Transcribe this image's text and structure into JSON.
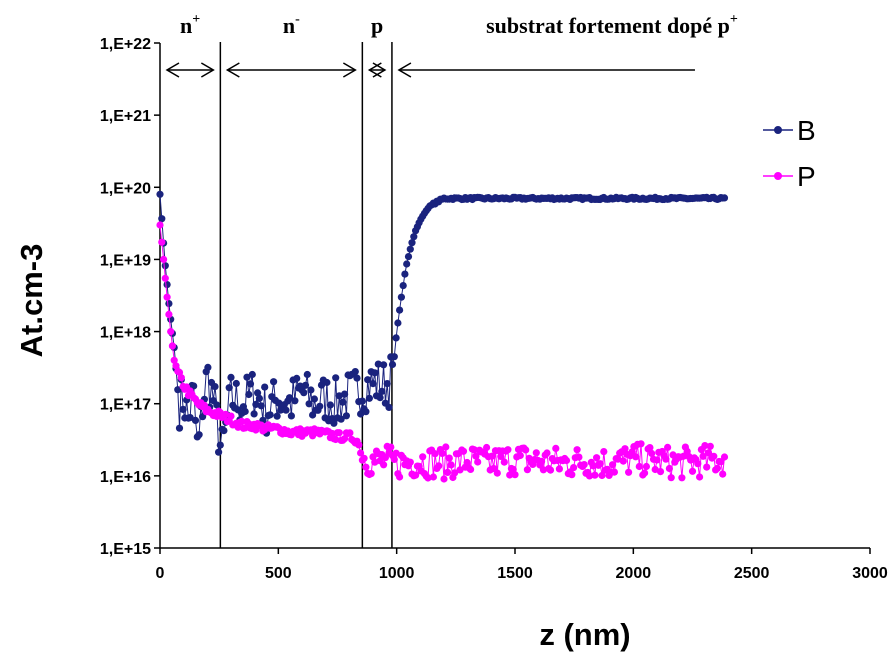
{
  "chart_data": {
    "type": "scatter",
    "title": "",
    "xlabel": "z (nm)",
    "ylabel": "At.cm-3",
    "xlim": [
      0,
      3000
    ],
    "ylim_exponent": [
      15,
      22
    ],
    "y_scale": "log",
    "x_ticks": [
      "0",
      "500",
      "1000",
      "1500",
      "2000",
      "2500",
      "3000"
    ],
    "y_ticks": [
      "1,E+15",
      "1,E+16",
      "1,E+17",
      "1,E+18",
      "1,E+19",
      "1,E+20",
      "1,E+21",
      "1,E+22"
    ],
    "legend_position": "top-right",
    "grid": false,
    "regions": [
      {
        "label": "n",
        "sup": "+",
        "x_from": 0,
        "x_to": 255
      },
      {
        "label": "n",
        "sup": "-",
        "x_from": 255,
        "x_to": 855
      },
      {
        "label": "p",
        "sup": "",
        "x_from": 855,
        "x_to": 980
      },
      {
        "label": "substrat fortement dopé  p",
        "sup": "+",
        "x_from": 980,
        "x_to": 2290
      }
    ],
    "boundaries": [
      255,
      855,
      980
    ],
    "series": [
      {
        "name": "B",
        "color": "#1a237e",
        "x": [
          0,
          20,
          40,
          60,
          80,
          100,
          120,
          140,
          160,
          180,
          200,
          230,
          260,
          300,
          350,
          400,
          450,
          500,
          550,
          600,
          650,
          700,
          750,
          800,
          850,
          880,
          910,
          940,
          970,
          985,
          1000,
          1020,
          1040,
          1060,
          1080,
          1100,
          1120,
          1140,
          1160,
          1180,
          1200,
          1250,
          1300,
          1400,
          1500,
          1600,
          1700,
          1800,
          1900,
          2000,
          2100,
          2200,
          2300,
          2385
        ],
        "y": [
          8e+19,
          1e+19,
          2e+18,
          6e+17,
          1e+17,
          1.2e+17,
          6e+16,
          1.5e+17,
          2e+16,
          1e+17,
          2.5e+17,
          1e+17,
          2e+16,
          1.2e+17,
          1e+17,
          1.5e+17,
          8e+16,
          1.2e+17,
          1e+17,
          1.5e+17,
          1e+17,
          1.2e+17,
          1e+17,
          1.3e+17,
          1.6e+17,
          1.8e+17,
          2e+17,
          1.8e+17,
          2e+17,
          3e+17,
          1e+18,
          3e+18,
          8e+18,
          1.5e+19,
          2.5e+19,
          3.5e+19,
          4.5e+19,
          5.5e+19,
          6e+19,
          6.5e+19,
          7e+19,
          7e+19,
          7e+19,
          7e+19,
          7e+19,
          7e+19,
          7e+19,
          7e+19,
          7e+19,
          7e+19,
          7e+19,
          7e+19,
          7e+19,
          7e+19
        ]
      },
      {
        "name": "P",
        "color": "#ff00ff",
        "x": [
          0,
          15,
          30,
          45,
          60,
          80,
          100,
          130,
          160,
          200,
          250,
          300,
          350,
          400,
          450,
          500,
          550,
          600,
          650,
          700,
          750,
          800,
          830,
          860,
          900,
          950,
          1000,
          1100,
          1200,
          1300,
          1400,
          1500,
          1600,
          1700,
          1800,
          1900,
          2000,
          2100,
          2200,
          2300,
          2385
        ],
        "y": [
          3e+19,
          1e+19,
          3e+18,
          1e+18,
          4e+17,
          2.5e+17,
          1.8e+17,
          1.3e+17,
          1e+17,
          8e+16,
          7e+16,
          6e+16,
          5e+16,
          5e+16,
          4.5e+16,
          4.5e+16,
          4e+16,
          4e+16,
          4e+16,
          3.8e+16,
          3.5e+16,
          3.5e+16,
          3.2e+16,
          1.8e+16,
          1.6e+16,
          1.6e+16,
          1.5e+16,
          1.6e+16,
          1.5e+16,
          1.6e+16,
          1.5e+16,
          1.7e+16,
          1.6e+16,
          1.5e+16,
          1.6e+16,
          1.5e+16,
          1.7e+16,
          1.6e+16,
          1.5e+16,
          1.6e+16,
          1.7e+16
        ]
      }
    ]
  }
}
